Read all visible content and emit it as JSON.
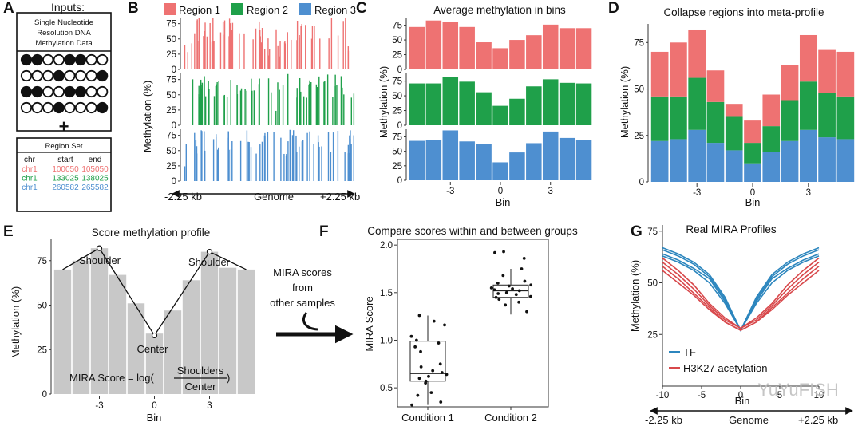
{
  "colors": {
    "region1": "#EE7272",
    "region2": "#1FA04A",
    "region3": "#4E8FD0",
    "grey_bar": "#C8C8C8",
    "tf": "#2C86BE",
    "h3k27": "#D8484B"
  },
  "panel_a": {
    "label": "A",
    "inputs_title": "Inputs:",
    "data_box_lines": [
      "Single Nucleotide",
      "Resolution DNA",
      "Methylation Data"
    ],
    "grid": [
      [
        1,
        1,
        0,
        0,
        1,
        1,
        0,
        0
      ],
      [
        0,
        0,
        0,
        1,
        0,
        0,
        0,
        1
      ],
      [
        1,
        1,
        0,
        0,
        1,
        1,
        0,
        0
      ],
      [
        0,
        0,
        0,
        1,
        0,
        0,
        0,
        1
      ]
    ],
    "plus": "+",
    "region_set_title": "Region Set",
    "region_table": {
      "headers": [
        "chr",
        "start",
        "end"
      ],
      "rows": [
        [
          "chr1",
          "100050",
          "105050"
        ],
        [
          "chr1",
          "133025",
          "138025"
        ],
        [
          "chr1",
          "260582",
          "265582"
        ]
      ]
    }
  },
  "panel_b": {
    "label": "B",
    "legend": [
      "Region 1",
      "Region 2",
      "Region 3"
    ],
    "ylabel": "Methylation (%)",
    "yticks": [
      "75",
      "50",
      "25",
      "0"
    ],
    "x_left": "-2.25 kb",
    "x_center": "Genome",
    "x_right": "+2.25 kb"
  },
  "panel_c": {
    "label": "C",
    "title": "Average methylation in bins",
    "ylabel": "Methylation (%)",
    "xlabel": "Bin",
    "yticks": [
      "75",
      "50",
      "25",
      "0"
    ],
    "xticks": [
      "-3",
      "0",
      "3"
    ]
  },
  "panel_d": {
    "label": "D",
    "title": "Collapse regions into meta-profile",
    "ylabel": "Methylation (%)",
    "xlabel": "Bin",
    "yticks": [
      "75",
      "50",
      "25",
      "0"
    ],
    "xticks": [
      "-3",
      "0",
      "3"
    ]
  },
  "panel_e": {
    "label": "E",
    "title": "Score methylation profile",
    "ylabel": "Methylation (%)",
    "xlabel": "Bin",
    "yticks": [
      "75",
      "50",
      "25",
      "0"
    ],
    "xticks": [
      "-3",
      "0",
      "3"
    ],
    "shoulder_left": "Shoulder",
    "shoulder_right": "Shoulder",
    "center": "Center",
    "formula_prefix": "MIRA Score = log(",
    "formula_num": "Shoulders",
    "formula_den": "Center",
    "formula_suffix": ")"
  },
  "arrow_note": [
    "MIRA scores",
    "from",
    "other samples"
  ],
  "panel_f": {
    "label": "F",
    "title": "Compare scores within and between groups",
    "ylabel": "MIRA Score",
    "yticks": [
      "2.0",
      "1.5",
      "1.0",
      "0.5"
    ],
    "categories": [
      "Condition 1",
      "Condition 2"
    ]
  },
  "panel_g": {
    "label": "G",
    "title": "Real MIRA Profiles",
    "ylabel": "Methylation (%)",
    "xlabel": "Bin",
    "yticks": [
      "75",
      "50",
      "25"
    ],
    "xticks": [
      "-10",
      "-5",
      "0",
      "5",
      "10"
    ],
    "legend": [
      "TF",
      "H3K27 acetylation"
    ],
    "x_left": "-2.25 kb",
    "x_center": "Genome",
    "x_right": "+2.25 kb",
    "watermark": "YuYuFISH"
  },
  "chart_data": [
    {
      "id": "C-binned",
      "type": "bar",
      "title": "Average methylation in bins",
      "xlabel": "Bin",
      "ylabel": "Methylation (%)",
      "bins": [
        -5,
        -4,
        -3,
        -2,
        -1,
        0,
        1,
        2,
        3,
        4,
        5
      ],
      "ylim": [
        0,
        85
      ],
      "series": [
        {
          "name": "Region 1",
          "values": [
            72,
            83,
            80,
            72,
            46,
            36,
            50,
            58,
            76,
            70,
            70
          ]
        },
        {
          "name": "Region 2",
          "values": [
            71,
            71,
            82,
            74,
            56,
            33,
            45,
            66,
            78,
            72,
            71
          ]
        },
        {
          "name": "Region 3",
          "values": [
            68,
            70,
            86,
            67,
            62,
            31,
            48,
            64,
            84,
            73,
            70
          ]
        }
      ]
    },
    {
      "id": "D-meta",
      "type": "bar",
      "stacked": true,
      "title": "Collapse regions into meta-profile",
      "xlabel": "Bin",
      "ylabel": "Methylation (%)",
      "bins": [
        -5,
        -4,
        -3,
        -2,
        -1,
        0,
        1,
        2,
        3,
        4,
        5
      ],
      "ylim": [
        0,
        85
      ],
      "series": [
        {
          "name": "Region 3",
          "values": [
            22,
            23,
            28,
            21,
            17,
            10,
            16,
            22,
            28,
            24,
            23
          ]
        },
        {
          "name": "Region 2",
          "values": [
            24,
            23,
            28,
            22,
            18,
            11,
            14,
            22,
            26,
            24,
            23
          ]
        },
        {
          "name": "Region 1",
          "values": [
            24,
            29,
            26,
            17,
            7,
            12,
            17,
            19,
            25,
            23,
            24
          ]
        }
      ]
    },
    {
      "id": "E-profile",
      "type": "bar",
      "title": "Score methylation profile",
      "xlabel": "Bin",
      "ylabel": "Methylation (%)",
      "bins": [
        -5,
        -4,
        -3,
        -2,
        -1,
        0,
        1,
        2,
        3,
        4,
        5
      ],
      "ylim": [
        0,
        85
      ],
      "values": [
        70,
        75,
        82,
        67,
        51,
        34,
        47,
        64,
        80,
        71,
        70
      ],
      "profile_points": [
        [
          -5,
          70
        ],
        [
          -3,
          82
        ],
        [
          0,
          33
        ],
        [
          3,
          80
        ],
        [
          5,
          70
        ]
      ]
    },
    {
      "id": "F-scores",
      "type": "box",
      "title": "Compare scores within and between groups",
      "ylabel": "MIRA Score",
      "ylim": [
        0.3,
        2.0
      ],
      "categories": [
        "Condition 1",
        "Condition 2"
      ],
      "boxes": [
        {
          "min": 0.32,
          "q1": 0.57,
          "median": 0.65,
          "q3": 0.99,
          "max": 1.26,
          "points": [
            1.2,
            1.16,
            1.26,
            1.04,
            1.0,
            0.97,
            0.93,
            0.88,
            0.75,
            0.72,
            0.68,
            0.66,
            0.64,
            0.62,
            0.6,
            0.57,
            0.55,
            0.45,
            0.42,
            0.35,
            0.32
          ]
        },
        {
          "min": 1.27,
          "q1": 1.45,
          "median": 1.52,
          "q3": 1.58,
          "max": 1.75,
          "points": [
            1.93,
            1.92,
            1.86,
            1.75,
            1.68,
            1.62,
            1.6,
            1.58,
            1.57,
            1.55,
            1.54,
            1.53,
            1.52,
            1.5,
            1.49,
            1.48,
            1.46,
            1.45,
            1.43,
            1.4,
            1.37,
            1.3
          ]
        }
      ]
    },
    {
      "id": "G-profiles",
      "type": "line",
      "title": "Real MIRA Profiles",
      "xlabel": "Bin",
      "ylabel": "Methylation (%)",
      "x": [
        -10,
        -8,
        -6,
        -4,
        -2,
        0,
        2,
        4,
        6,
        8,
        10
      ],
      "xlim": [
        -10,
        10
      ],
      "ylim": [
        0,
        78
      ],
      "series": [
        {
          "name": "TF",
          "values": [
            67,
            64,
            60,
            54,
            43,
            27,
            43,
            54,
            60,
            64,
            67
          ]
        },
        {
          "name": "TF",
          "values": [
            66,
            63,
            59,
            53,
            42,
            27,
            42,
            53,
            59,
            63,
            66
          ]
        },
        {
          "name": "TF",
          "values": [
            64,
            61,
            57,
            52,
            41,
            27,
            41,
            52,
            57,
            61,
            64
          ]
        },
        {
          "name": "TF",
          "values": [
            63,
            60,
            56,
            50,
            40,
            27,
            40,
            50,
            56,
            60,
            63
          ]
        },
        {
          "name": "H3K27 acetylation",
          "values": [
            62,
            56,
            49,
            40,
            33,
            28,
            33,
            40,
            49,
            56,
            62
          ]
        },
        {
          "name": "H3K27 acetylation",
          "values": [
            60,
            54,
            47,
            39,
            32,
            28,
            32,
            39,
            47,
            54,
            60
          ]
        },
        {
          "name": "H3K27 acetylation",
          "values": [
            58,
            52,
            45,
            38,
            31,
            27,
            31,
            38,
            45,
            52,
            58
          ]
        },
        {
          "name": "H3K27 acetylation",
          "values": [
            56,
            50,
            44,
            37,
            31,
            27,
            31,
            37,
            44,
            50,
            56
          ]
        }
      ]
    }
  ]
}
